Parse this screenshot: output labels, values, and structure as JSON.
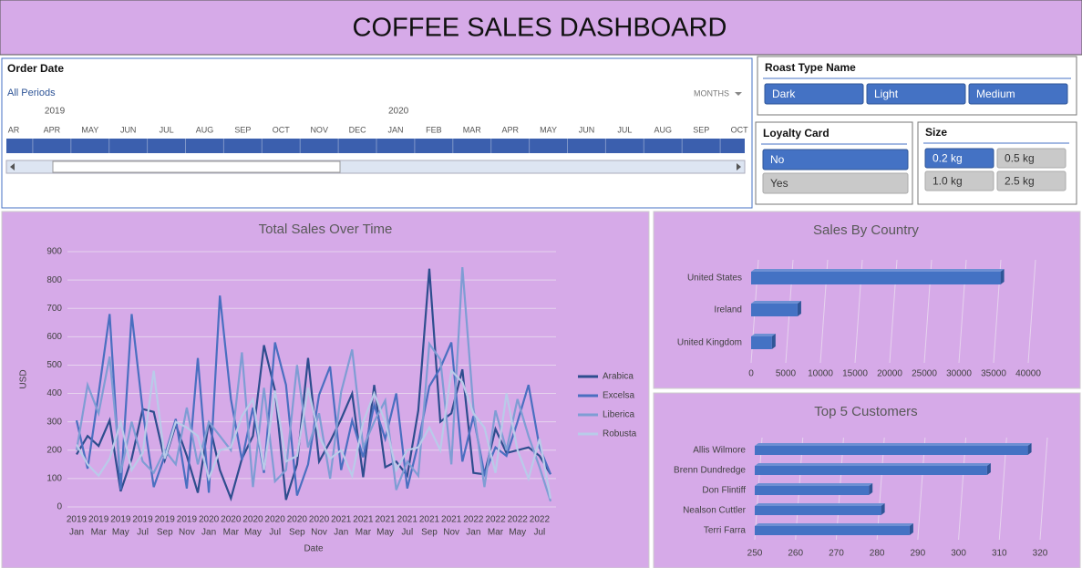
{
  "header": {
    "title": "COFFEE SALES DASHBOARD"
  },
  "timeline": {
    "title": "Order Date",
    "period": "All Periods",
    "unit": "MONTHS",
    "years": [
      "2019",
      "2020"
    ],
    "months": [
      "AR",
      "APR",
      "MAY",
      "JUN",
      "JUL",
      "AUG",
      "SEP",
      "OCT",
      "NOV",
      "DEC",
      "JAN",
      "FEB",
      "MAR",
      "APR",
      "MAY",
      "JUN",
      "JUL",
      "AUG",
      "SEP",
      "OCT"
    ]
  },
  "slicers": {
    "roast": {
      "title": "Roast Type Name",
      "items": [
        "Dark",
        "Light",
        "Medium"
      ],
      "selected": [
        true,
        true,
        true
      ]
    },
    "loyalty": {
      "title": "Loyalty Card",
      "items": [
        "No",
        "Yes"
      ],
      "selected": [
        true,
        false
      ]
    },
    "size": {
      "title": "Size",
      "items": [
        "0.2 kg",
        "0.5 kg",
        "1.0 kg",
        "2.5 kg"
      ],
      "selected": [
        true,
        false,
        false,
        false
      ]
    }
  },
  "chart_data": [
    {
      "type": "line",
      "title": "Total Sales Over Time",
      "x_label": "Date",
      "y_label": "USD",
      "categories": [
        [
          "2019",
          "Jan"
        ],
        null,
        [
          "2019",
          "Mar"
        ],
        null,
        [
          "2019",
          "May"
        ],
        null,
        [
          "2019",
          "Jul"
        ],
        null,
        [
          "2019",
          "Sep"
        ],
        null,
        [
          "2019",
          "Nov"
        ],
        null,
        [
          "2020",
          "Jan"
        ],
        null,
        [
          "2020",
          "Mar"
        ],
        null,
        [
          "2020",
          "May"
        ],
        null,
        [
          "2020",
          "Jul"
        ],
        null,
        [
          "2020",
          "Sep"
        ],
        null,
        [
          "2020",
          "Nov"
        ],
        null,
        [
          "2021",
          "Jan"
        ],
        null,
        [
          "2021",
          "Mar"
        ],
        null,
        [
          "2021",
          "May"
        ],
        null,
        [
          "2021",
          "Jul"
        ],
        null,
        [
          "2021",
          "Sep"
        ],
        null,
        [
          "2021",
          "Nov"
        ],
        null,
        [
          "2022",
          "Jan"
        ],
        null,
        [
          "2022",
          "Mar"
        ],
        null,
        [
          "2022",
          "May"
        ],
        null,
        [
          "2022",
          "Jul"
        ],
        null
      ],
      "ylim": [
        0,
        900
      ],
      "yticks": [
        0,
        100,
        200,
        300,
        400,
        500,
        600,
        700,
        800,
        900
      ],
      "grid": true,
      "series": [
        {
          "name": "Arabica",
          "color": "#2e4d8e",
          "values": [
            185,
            250,
            215,
            305,
            55,
            170,
            345,
            335,
            165,
            290,
            180,
            50,
            300,
            130,
            30,
            170,
            250,
            570,
            410,
            25,
            150,
            525,
            160,
            230,
            310,
            400,
            105,
            430,
            140,
            160,
            110,
            340,
            840,
            300,
            330,
            485,
            120,
            115,
            275,
            190,
            200,
            210,
            180,
            115
          ]
        },
        {
          "name": "Excelsa",
          "color": "#4a6fc0",
          "values": [
            305,
            135,
            400,
            680,
            60,
            680,
            340,
            70,
            180,
            310,
            65,
            525,
            50,
            745,
            380,
            165,
            350,
            120,
            580,
            430,
            40,
            150,
            395,
            495,
            130,
            305,
            175,
            360,
            240,
            400,
            65,
            225,
            425,
            490,
            580,
            160,
            320,
            115,
            210,
            180,
            300,
            430,
            210,
            115
          ]
        },
        {
          "name": "Liberica",
          "color": "#7f9dd4",
          "values": [
            200,
            430,
            330,
            530,
            120,
            300,
            160,
            120,
            200,
            150,
            350,
            150,
            300,
            250,
            200,
            545,
            70,
            420,
            90,
            130,
            500,
            210,
            330,
            100,
            405,
            555,
            210,
            300,
            375,
            60,
            160,
            110,
            575,
            520,
            150,
            845,
            350,
            70,
            340,
            200,
            380,
            250,
            140,
            20
          ]
        },
        {
          "name": "Robusta",
          "color": "#b9cbe9",
          "values": [
            220,
            150,
            110,
            170,
            300,
            130,
            190,
            480,
            170,
            300,
            280,
            250,
            100,
            200,
            210,
            320,
            380,
            130,
            410,
            160,
            180,
            420,
            250,
            170,
            200,
            110,
            300,
            400,
            300,
            130,
            200,
            210,
            280,
            200,
            480,
            440,
            330,
            280,
            120,
            400,
            200,
            100,
            240,
            30
          ]
        }
      ]
    },
    {
      "type": "hbar",
      "title": "Sales By Country",
      "categories": [
        "United States",
        "Ireland",
        "United Kingdom"
      ],
      "values": [
        36000,
        6700,
        3000
      ],
      "color": "#4472c4",
      "xlim": [
        0,
        40000
      ],
      "xticks": [
        0,
        5000,
        10000,
        15000,
        20000,
        25000,
        30000,
        35000,
        40000
      ],
      "grid": true
    },
    {
      "type": "hbar",
      "title": "Top 5 Customers",
      "categories": [
        "Allis Wilmore",
        "Brenn Dundredge",
        "Don Flintiff",
        "Nealson Cuttler",
        "Terri Farra"
      ],
      "values": [
        317,
        307,
        278,
        281,
        288
      ],
      "color": "#4472c4",
      "xlim": [
        250,
        320
      ],
      "xticks": [
        250,
        260,
        270,
        280,
        290,
        300,
        310,
        320
      ],
      "grid": true
    }
  ]
}
